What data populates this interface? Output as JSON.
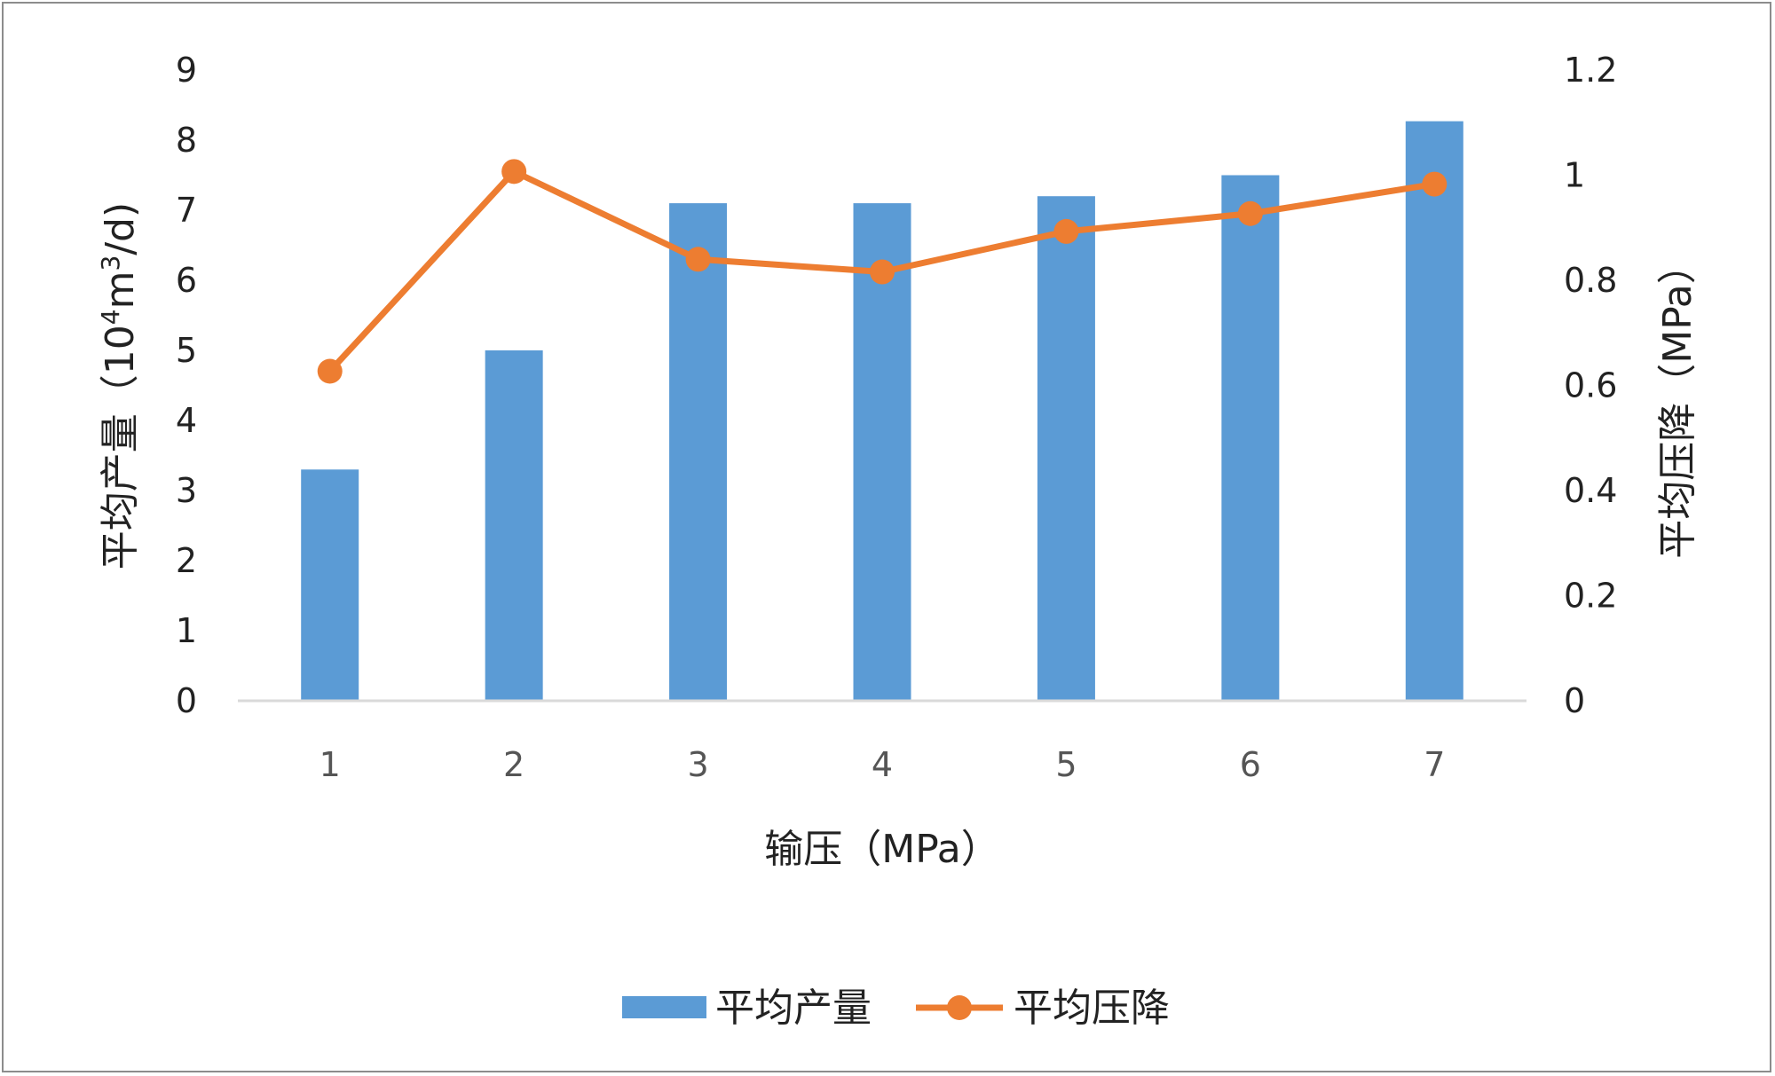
{
  "chart_data": {
    "type": "bar+line",
    "categories": [
      "1",
      "2",
      "3",
      "4",
      "5",
      "6",
      "7"
    ],
    "series": [
      {
        "name": "平均产量",
        "type": "bar",
        "axis": "left",
        "color": "#5b9bd5",
        "values": [
          3.3,
          5.0,
          7.1,
          7.1,
          7.2,
          7.5,
          8.27
        ]
      },
      {
        "name": "平均压降",
        "type": "line",
        "axis": "right",
        "color": "#ed7d31",
        "values": [
          0.627,
          1.007,
          0.84,
          0.816,
          0.893,
          0.927,
          0.983
        ]
      }
    ],
    "xlabel": "输压（MPa）",
    "ylabel_left": {
      "prefix": "平均产量（10",
      "sup1": "4",
      "mid": "m",
      "sup2": "3",
      "suffix": "/d)"
    },
    "ylabel_right": "平均压降（MPa）",
    "ylim_left": [
      0,
      9
    ],
    "yticks_left": [
      "0",
      "1",
      "2",
      "3",
      "4",
      "5",
      "6",
      "7",
      "8",
      "9"
    ],
    "ylim_right": [
      0,
      1.2
    ],
    "yticks_right": [
      "0",
      "0.2",
      "0.4",
      "0.6",
      "0.8",
      "1",
      "1.2"
    ],
    "grid": false,
    "legend_position": "bottom"
  }
}
